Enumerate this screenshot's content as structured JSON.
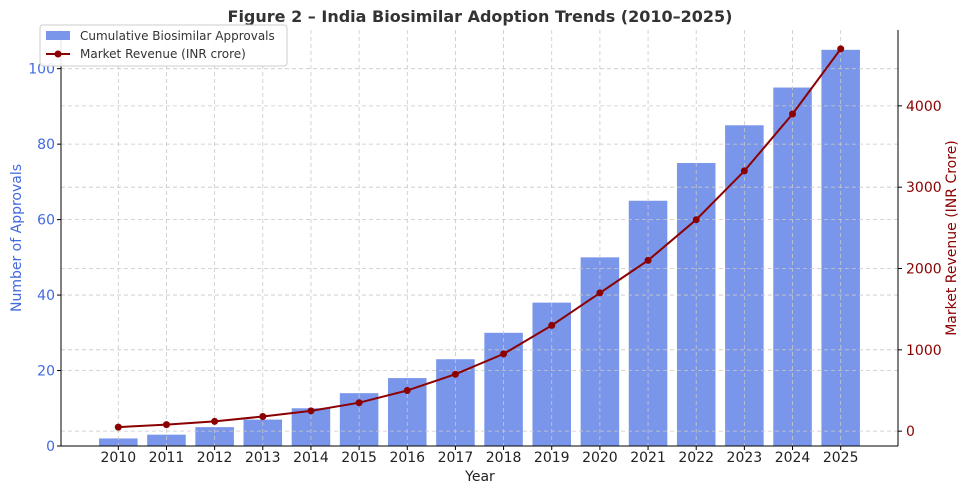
{
  "colors": {
    "bar": "#7a96ea",
    "line": "#8b0000",
    "left_axis": "#4169e1",
    "right_axis": "#8b0000",
    "text": "#222222"
  },
  "chart_data": {
    "type": "bar",
    "title": "Figure 2 – India Biosimilar Adoption Trends (2010–2025)",
    "categories": [
      "2010",
      "2011",
      "2012",
      "2013",
      "2014",
      "2015",
      "2016",
      "2017",
      "2018",
      "2019",
      "2020",
      "2021",
      "2022",
      "2023",
      "2024",
      "2025"
    ],
    "series": [
      {
        "name": "Cumulative Biosimilar Approvals",
        "type": "bar",
        "axis": "left",
        "values": [
          2,
          3,
          5,
          7,
          10,
          14,
          18,
          23,
          30,
          38,
          50,
          65,
          75,
          85,
          95,
          105
        ]
      },
      {
        "name": "Market Revenue (INR crore)",
        "type": "line",
        "axis": "right",
        "values": [
          50,
          80,
          120,
          180,
          250,
          350,
          500,
          700,
          950,
          1300,
          1700,
          2100,
          2600,
          3200,
          3900,
          4700
        ]
      }
    ],
    "xlabel": "Year",
    "ylabel": "Number of Approvals",
    "y2label": "Market Revenue (INR Crore)",
    "ylim": [
      0,
      110.25
    ],
    "y2lim": [
      -182.5,
      4932.5
    ],
    "yticks": [
      0,
      20,
      40,
      60,
      80,
      100
    ],
    "y2ticks": [
      0,
      1000,
      2000,
      3000,
      4000
    ],
    "grid": true,
    "legend_position": "top-left"
  }
}
